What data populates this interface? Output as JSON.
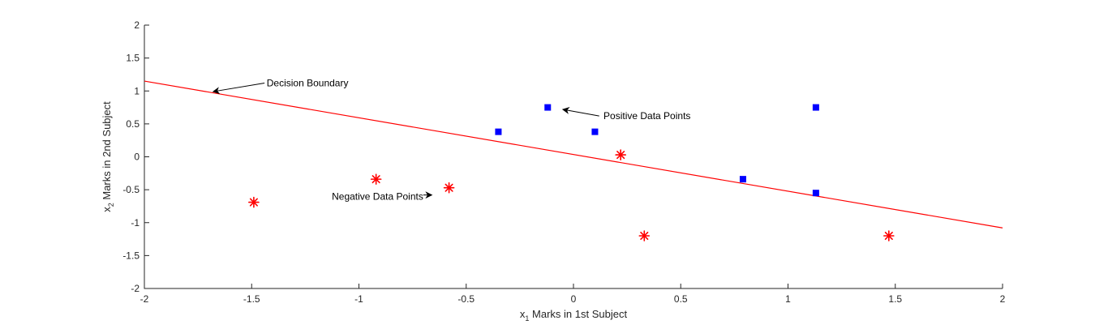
{
  "chart_data": {
    "type": "scatter",
    "title": "",
    "xlabel": {
      "var": "x",
      "sub": "1",
      "text": " Marks in 1st Subject"
    },
    "ylabel": {
      "var": "x",
      "sub": "2",
      "text": " Marks in 2nd Subject"
    },
    "xlim": [
      -2,
      2
    ],
    "ylim": [
      -2,
      2
    ],
    "xticks": [
      -2,
      -1.5,
      -1,
      -0.5,
      0,
      0.5,
      1,
      1.5,
      2
    ],
    "yticks": [
      -2,
      -1.5,
      -1,
      -0.5,
      0,
      0.5,
      1,
      1.5,
      2
    ],
    "grid": false,
    "series": [
      {
        "marker": "square",
        "color": "#0000ff",
        "points": [
          [
            -0.35,
            0.38
          ],
          [
            -0.12,
            0.75
          ],
          [
            0.1,
            0.38
          ],
          [
            0.79,
            -0.34
          ],
          [
            1.13,
            0.75
          ],
          [
            1.13,
            -0.55
          ]
        ]
      },
      {
        "marker": "asterisk",
        "color": "#ff0000",
        "points": [
          [
            -1.49,
            -0.69
          ],
          [
            -0.92,
            -0.34
          ],
          [
            -0.58,
            -0.47
          ],
          [
            0.22,
            0.03
          ],
          [
            0.33,
            -1.2
          ],
          [
            1.47,
            -1.2
          ]
        ]
      }
    ],
    "lines": [
      {
        "color": "#ff0000",
        "points": [
          [
            -2,
            1.15
          ],
          [
            2,
            -1.08
          ]
        ]
      }
    ],
    "annotations": [
      {
        "text": "Decision Boundary",
        "text_at": [
          -1.43,
          1.12
        ],
        "anchor": "start",
        "arrow_from": [
          -1.44,
          1.12
        ],
        "arrow_to": [
          -1.68,
          0.99
        ]
      },
      {
        "text": "Positive Data Points",
        "text_at": [
          0.14,
          0.62
        ],
        "anchor": "start",
        "arrow_from": [
          0.12,
          0.62
        ],
        "arrow_to": [
          -0.05,
          0.72
        ]
      },
      {
        "text": "Negative Data Points",
        "text_at": [
          -0.7,
          -0.6
        ],
        "anchor": "end",
        "arrow_from": [
          -0.7,
          -0.58
        ],
        "arrow_to": [
          -0.66,
          -0.58
        ]
      }
    ]
  }
}
